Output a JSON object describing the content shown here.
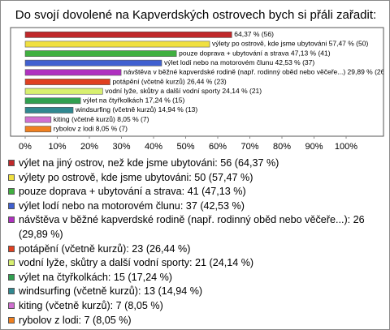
{
  "chart_data": {
    "type": "bar",
    "orientation": "horizontal",
    "title": "Do svojí dovolené na Kapverdských ostrovech bych si přáli zařadit:",
    "categories": [
      "výlet na jiný ostrov, než kde jsme ubytováni: 56 (64,37 %)",
      "výlety po ostrově, kde jsme ubytováni: 50 (57,47 %)",
      "pouze doprava + ubytování a strava: 41 (47,13 %)",
      "výlet lodí nebo na motorovém člunu: 37 (42,53 %)",
      "návštěva v běžné kapverdské rodině (např. rodinný oběd nebo věčeře...): 26 (29,89 %)",
      "potápění (včetně kurzů): 23 (26,44 %)",
      "vodní lyže, skůtry a další vodní sporty: 21 (24,14 %)",
      "výlet na čtyřkolkách: 15 (17,24 %)",
      "windsurfing (včetně kurzů): 13 (14,94 %)",
      "kiting (včetně kurzů): 7 (8,05 %)",
      "rybolov z lodi: 7 (8,05 %)"
    ],
    "values": [
      64.37,
      57.47,
      47.13,
      42.53,
      29.89,
      26.44,
      24.14,
      17.24,
      14.94,
      8.05,
      8.05
    ],
    "value_labels": [
      "64,37 % (56)",
      "výlety po ostrově, kde jsme ubytováni 57,47 % (50)",
      "pouze doprava + ubytování a strava 47,13 % (41)",
      "výlet lodí nebo na motorovém člunu 42,53 % (37)",
      "návštěva v běžné kapverdské rodině (např. rodinný oběd nebo věčeře...) 29,89 % (26)",
      "potápění (včetně kurzů) 26,44 % (23)",
      "vodní lyže, skůtry a další vodní sporty 24,14 % (21)",
      "výlet na čtyřkolkách 17,24 % (15)",
      "windsurfing (včetně kurzů) 14,94 % (13)",
      "kiting (včetně kurzů) 8,05 % (7)",
      "rybolov z lodi 8,05 % (7)"
    ],
    "colors": [
      "#c0282a",
      "#f0e040",
      "#40b040",
      "#4060d0",
      "#b030c0",
      "#e04020",
      "#d8f070",
      "#30a050",
      "#308890",
      "#d070d0",
      "#f08020"
    ],
    "xlim": [
      0,
      100
    ],
    "xticks": [
      {
        "value": 0,
        "label": "0%"
      },
      {
        "value": 10,
        "label": "10%"
      },
      {
        "value": 20,
        "label": "20%"
      },
      {
        "value": 30,
        "label": "30%"
      },
      {
        "value": 40,
        "label": "40%"
      },
      {
        "value": 50,
        "label": "50%"
      },
      {
        "value": 60,
        "label": "60%"
      },
      {
        "value": 70,
        "label": "70%"
      },
      {
        "value": 80,
        "label": "80%"
      },
      {
        "value": 90,
        "label": "90%"
      },
      {
        "value": 100,
        "label": "100%"
      }
    ]
  }
}
